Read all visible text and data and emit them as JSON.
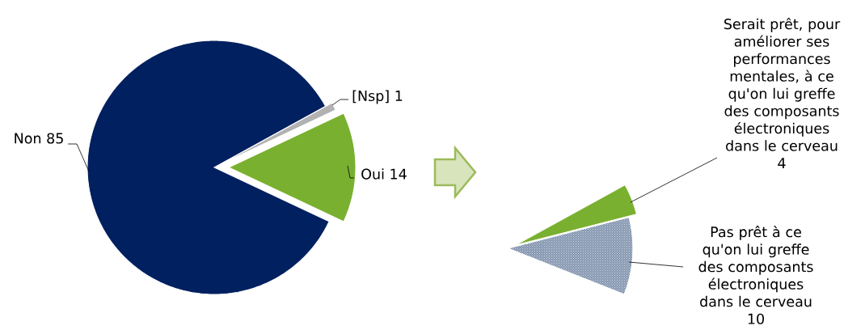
{
  "chart_data": [
    {
      "type": "pie",
      "categories": [
        "Non",
        "Oui",
        "[Nsp]"
      ],
      "values": [
        85,
        14,
        1
      ],
      "colors": [
        "#002060",
        "#7ab030",
        "#b2b2b2"
      ],
      "data_labels": true
    },
    {
      "type": "pie",
      "categories": [
        "Serait prêt, pour améliorer ses performances mentales, à ce qu'on lui greffe des composants électroniques dans le cerveau",
        "Pas prêt à ce qu'on lui greffe des composants électroniques dans le cerveau"
      ],
      "values": [
        4,
        10
      ],
      "colors": [
        "#7ab030",
        "#8496b0"
      ],
      "data_labels": true
    }
  ]
}
